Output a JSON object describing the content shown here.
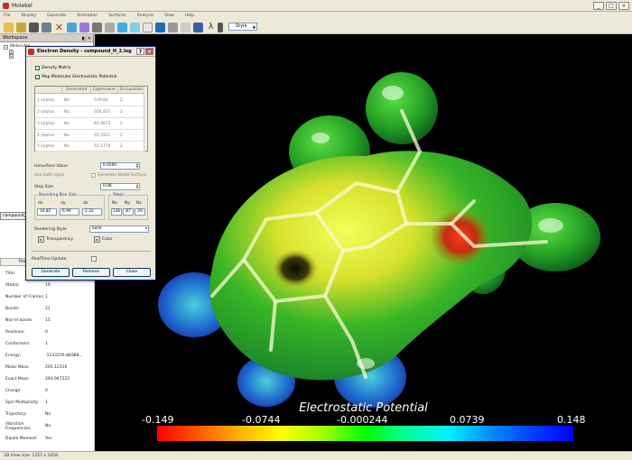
{
  "app": {
    "title": "Molekel"
  },
  "window_buttons": [
    "_",
    "□",
    "×"
  ],
  "menu": [
    "File",
    "Display",
    "Generate",
    "Animation",
    "Surfaces",
    "Analysis",
    "View",
    "Help"
  ],
  "toolbar": {
    "style_label": "Style"
  },
  "workspace": {
    "title": "Workspace",
    "tree_root": "Molecules",
    "tab_label": "compound_H_"
  },
  "properties": {
    "tab_label": "Properties",
    "rows": [
      {
        "label": "Title:",
        "value": ""
      },
      {
        "label": "Atoms:",
        "value": "19"
      },
      {
        "label": "Number of Frames:",
        "value": "1"
      },
      {
        "label": "Bonds:",
        "value": "21"
      },
      {
        "label": "Non-H bonds:",
        "value": "15"
      },
      {
        "label": "Residues:",
        "value": "0"
      },
      {
        "label": "Conformers:",
        "value": "1"
      },
      {
        "label": "Energy:",
        "value": "-1133376.88388..."
      },
      {
        "label": "Molar Mass:",
        "value": "295.12316"
      },
      {
        "label": "Exact Mass:",
        "value": "293.947222"
      },
      {
        "label": "Charge:",
        "value": "0"
      },
      {
        "label": "Spin Multiplicity:",
        "value": "1"
      },
      {
        "label": "Trajectory:",
        "value": "No"
      },
      {
        "label": "Vibration Frequencies:",
        "value": "No"
      },
      {
        "label": "Dipole Moment:",
        "value": "Yes"
      }
    ]
  },
  "dialog": {
    "title": "Electron Density - compound_H_2.log",
    "density_matrix_label": "Density Matrix",
    "map_mep_label": "Map Molecular Electrostatic Potential",
    "columns": [
      "",
      "Generated",
      "Eigenvalue",
      "Occupation"
    ],
    "orbitals": [
      {
        "name": "1 (alpha)",
        "generated": "No",
        "eigenvalue": "-109.84",
        "occupation": "2"
      },
      {
        "name": "2 (alpha)",
        "generated": "No",
        "eigenvalue": "-104.837",
        "occupation": "2"
      },
      {
        "name": "3 (alpha)",
        "generated": "No",
        "eigenvalue": "-91.9673",
        "occupation": "2"
      },
      {
        "name": "4 (alpha)",
        "generated": "No",
        "eigenvalue": "-55.5911",
        "occupation": "2"
      },
      {
        "name": "5 (alpha)",
        "generated": "No",
        "eigenvalue": "-55.5774",
        "occupation": "2"
      }
    ],
    "isosurface_label": "Isosurface Value",
    "isosurface_value": "0.0500",
    "use_both_signs_label": "Use both signs",
    "generate_nodal_label": "Generate Nodal Surface",
    "step_size_label": "Step Size",
    "step_size_value": "0.08",
    "bbox_title": "Bounding Box Size",
    "bbox_labels": [
      "dx",
      "dy",
      "dz"
    ],
    "bbox_values": [
      "10.82",
      "6.99",
      "2.32"
    ],
    "steps_title": "Steps",
    "steps_labels": [
      "Nx",
      "Ny",
      "Nz"
    ],
    "steps_values": [
      "136",
      "87",
      "29"
    ],
    "rendering_style_label": "Rendering Style",
    "rendering_style_value": "Solid",
    "transparency_label": "Transparency",
    "color_label": "Color",
    "realtime_label": "RealTime Update",
    "generate_btn": "Generate",
    "remove_btn": "Remove",
    "close_btn": "Close"
  },
  "viewer": {
    "legend_title": "Electrostatic Potential",
    "ticks": [
      "-0.149",
      "-0.0744",
      "-0.000244",
      "0.0739",
      "0.148"
    ]
  },
  "status": {
    "text": "3D View size: 1357 x 1058"
  }
}
